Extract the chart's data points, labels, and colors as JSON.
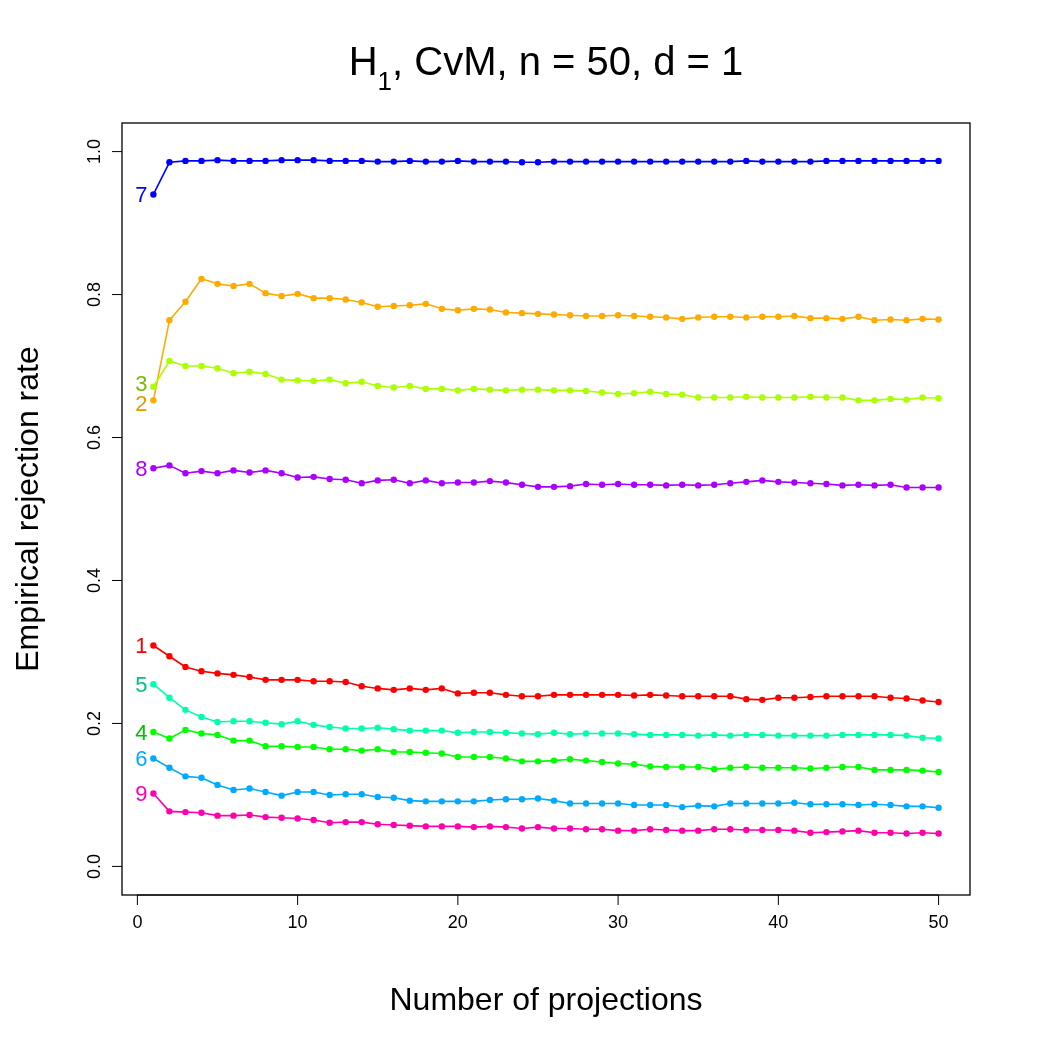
{
  "chart_data": {
    "type": "line",
    "title": "H$_{1}$, CvM, n = 50, d = 1",
    "xlabel": "Number of projections",
    "ylabel": "Empirical rejection rate",
    "x": [
      1,
      2,
      3,
      4,
      5,
      6,
      7,
      8,
      9,
      10,
      11,
      12,
      13,
      14,
      15,
      16,
      17,
      18,
      19,
      20,
      21,
      22,
      23,
      24,
      25,
      26,
      27,
      28,
      29,
      30,
      31,
      32,
      33,
      34,
      35,
      36,
      37,
      38,
      39,
      40,
      41,
      42,
      43,
      44,
      45,
      46,
      47,
      48,
      49,
      50
    ],
    "xlim": [
      -0.96,
      51.96
    ],
    "xticks": [
      0,
      10,
      20,
      30,
      40,
      50
    ],
    "ylim": [
      -0.04,
      1.04
    ],
    "yticks": [
      {
        "value": 0,
        "label": "0.0"
      },
      0.2,
      0.4,
      0.6,
      0.8,
      {
        "value": 1,
        "label": "1.0"
      }
    ],
    "grid": false,
    "marker": "circle",
    "line_style": "solid",
    "series": [
      {
        "name": "1",
        "color": "#ff0000",
        "values": [
          0.309,
          0.294,
          0.279,
          0.273,
          0.27,
          0.268,
          0.265,
          0.261,
          0.261,
          0.261,
          0.259,
          0.259,
          0.258,
          0.252,
          0.249,
          0.247,
          0.249,
          0.247,
          0.249,
          0.242,
          0.243,
          0.243,
          0.24,
          0.238,
          0.238,
          0.24,
          0.24,
          0.24,
          0.24,
          0.24,
          0.239,
          0.24,
          0.239,
          0.238,
          0.238,
          0.238,
          0.238,
          0.234,
          0.233,
          0.236,
          0.236,
          0.237,
          0.238,
          0.238,
          0.238,
          0.238,
          0.236,
          0.235,
          0.232,
          0.23
        ]
      },
      {
        "name": "2",
        "color": "#ffaa00",
        "values": [
          0.652,
          0.764,
          0.79,
          0.822,
          0.815,
          0.812,
          0.815,
          0.802,
          0.798,
          0.801,
          0.795,
          0.795,
          0.793,
          0.789,
          0.783,
          0.784,
          0.785,
          0.787,
          0.78,
          0.778,
          0.78,
          0.779,
          0.775,
          0.774,
          0.773,
          0.772,
          0.771,
          0.77,
          0.77,
          0.771,
          0.77,
          0.769,
          0.768,
          0.766,
          0.768,
          0.769,
          0.769,
          0.768,
          0.769,
          0.769,
          0.77,
          0.767,
          0.767,
          0.766,
          0.769,
          0.764,
          0.765,
          0.764,
          0.766,
          0.765
        ]
      },
      {
        "name": "3",
        "color": "#aaff00",
        "values": [
          0.671,
          0.707,
          0.7,
          0.7,
          0.697,
          0.69,
          0.692,
          0.689,
          0.681,
          0.68,
          0.679,
          0.681,
          0.676,
          0.678,
          0.672,
          0.67,
          0.672,
          0.668,
          0.668,
          0.666,
          0.668,
          0.667,
          0.666,
          0.667,
          0.667,
          0.666,
          0.666,
          0.665,
          0.663,
          0.661,
          0.662,
          0.664,
          0.661,
          0.66,
          0.656,
          0.656,
          0.656,
          0.657,
          0.656,
          0.656,
          0.656,
          0.657,
          0.656,
          0.656,
          0.652,
          0.652,
          0.654,
          0.653,
          0.656,
          0.655
        ]
      },
      {
        "name": "4",
        "color": "#00ff00",
        "values": [
          0.188,
          0.179,
          0.191,
          0.186,
          0.184,
          0.176,
          0.176,
          0.168,
          0.168,
          0.167,
          0.167,
          0.164,
          0.164,
          0.162,
          0.164,
          0.16,
          0.16,
          0.159,
          0.158,
          0.153,
          0.153,
          0.153,
          0.151,
          0.147,
          0.147,
          0.148,
          0.15,
          0.148,
          0.146,
          0.144,
          0.143,
          0.14,
          0.139,
          0.139,
          0.139,
          0.136,
          0.138,
          0.139,
          0.138,
          0.138,
          0.138,
          0.137,
          0.138,
          0.139,
          0.139,
          0.135,
          0.135,
          0.135,
          0.134,
          0.132
        ]
      },
      {
        "name": "5",
        "color": "#00ffaa",
        "values": [
          0.255,
          0.236,
          0.219,
          0.209,
          0.202,
          0.203,
          0.203,
          0.201,
          0.199,
          0.203,
          0.198,
          0.195,
          0.193,
          0.193,
          0.194,
          0.192,
          0.19,
          0.19,
          0.19,
          0.187,
          0.188,
          0.188,
          0.187,
          0.186,
          0.185,
          0.187,
          0.185,
          0.186,
          0.186,
          0.186,
          0.185,
          0.184,
          0.184,
          0.184,
          0.183,
          0.184,
          0.183,
          0.184,
          0.184,
          0.183,
          0.183,
          0.183,
          0.183,
          0.184,
          0.184,
          0.184,
          0.184,
          0.183,
          0.18,
          0.179
        ]
      },
      {
        "name": "6",
        "color": "#00aaff",
        "values": [
          0.151,
          0.138,
          0.126,
          0.124,
          0.114,
          0.107,
          0.109,
          0.104,
          0.099,
          0.104,
          0.104,
          0.1,
          0.101,
          0.101,
          0.097,
          0.096,
          0.092,
          0.091,
          0.091,
          0.091,
          0.091,
          0.093,
          0.094,
          0.094,
          0.095,
          0.092,
          0.088,
          0.088,
          0.088,
          0.088,
          0.086,
          0.086,
          0.086,
          0.083,
          0.085,
          0.084,
          0.088,
          0.088,
          0.088,
          0.088,
          0.089,
          0.087,
          0.087,
          0.087,
          0.086,
          0.087,
          0.086,
          0.084,
          0.084,
          0.082
        ]
      },
      {
        "name": "7",
        "color": "#0000ff",
        "values": [
          0.94,
          0.985,
          0.987,
          0.987,
          0.988,
          0.987,
          0.987,
          0.987,
          0.988,
          0.988,
          0.988,
          0.987,
          0.987,
          0.987,
          0.986,
          0.986,
          0.987,
          0.986,
          0.986,
          0.987,
          0.986,
          0.986,
          0.986,
          0.985,
          0.985,
          0.986,
          0.986,
          0.986,
          0.986,
          0.986,
          0.986,
          0.986,
          0.986,
          0.986,
          0.986,
          0.986,
          0.986,
          0.987,
          0.986,
          0.986,
          0.986,
          0.986,
          0.987,
          0.987,
          0.987,
          0.987,
          0.987,
          0.987,
          0.987,
          0.987
        ]
      },
      {
        "name": "8",
        "color": "#aa00ff",
        "values": [
          0.557,
          0.561,
          0.55,
          0.553,
          0.55,
          0.554,
          0.551,
          0.554,
          0.55,
          0.544,
          0.545,
          0.542,
          0.541,
          0.536,
          0.54,
          0.541,
          0.536,
          0.54,
          0.536,
          0.537,
          0.537,
          0.539,
          0.537,
          0.534,
          0.531,
          0.531,
          0.532,
          0.535,
          0.534,
          0.535,
          0.534,
          0.534,
          0.533,
          0.534,
          0.533,
          0.534,
          0.536,
          0.538,
          0.54,
          0.538,
          0.537,
          0.536,
          0.535,
          0.533,
          0.534,
          0.533,
          0.534,
          0.53,
          0.53,
          0.53
        ]
      },
      {
        "name": "9",
        "color": "#ff00aa",
        "values": [
          0.102,
          0.077,
          0.076,
          0.075,
          0.071,
          0.071,
          0.072,
          0.069,
          0.068,
          0.067,
          0.065,
          0.061,
          0.062,
          0.062,
          0.059,
          0.058,
          0.057,
          0.056,
          0.056,
          0.056,
          0.055,
          0.056,
          0.055,
          0.053,
          0.055,
          0.053,
          0.053,
          0.052,
          0.052,
          0.05,
          0.05,
          0.052,
          0.051,
          0.05,
          0.05,
          0.052,
          0.052,
          0.051,
          0.051,
          0.051,
          0.05,
          0.047,
          0.048,
          0.049,
          0.05,
          0.047,
          0.047,
          0.046,
          0.047,
          0.046
        ]
      }
    ]
  }
}
